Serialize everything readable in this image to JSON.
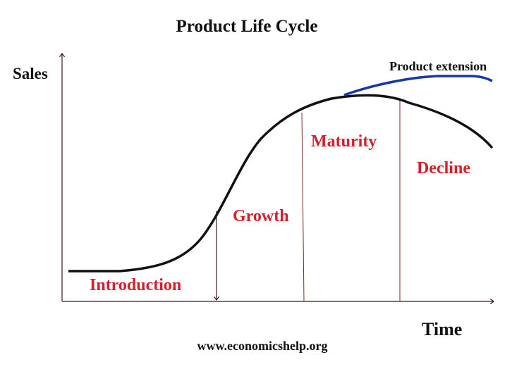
{
  "title": "Product Life Cycle",
  "y_axis_label": "Sales",
  "x_axis_label": "Time",
  "extension_label": "Product extension",
  "stages": [
    "Introduction",
    "Growth",
    "Maturity",
    "Decline"
  ],
  "source": "www.economicshelp.org"
}
